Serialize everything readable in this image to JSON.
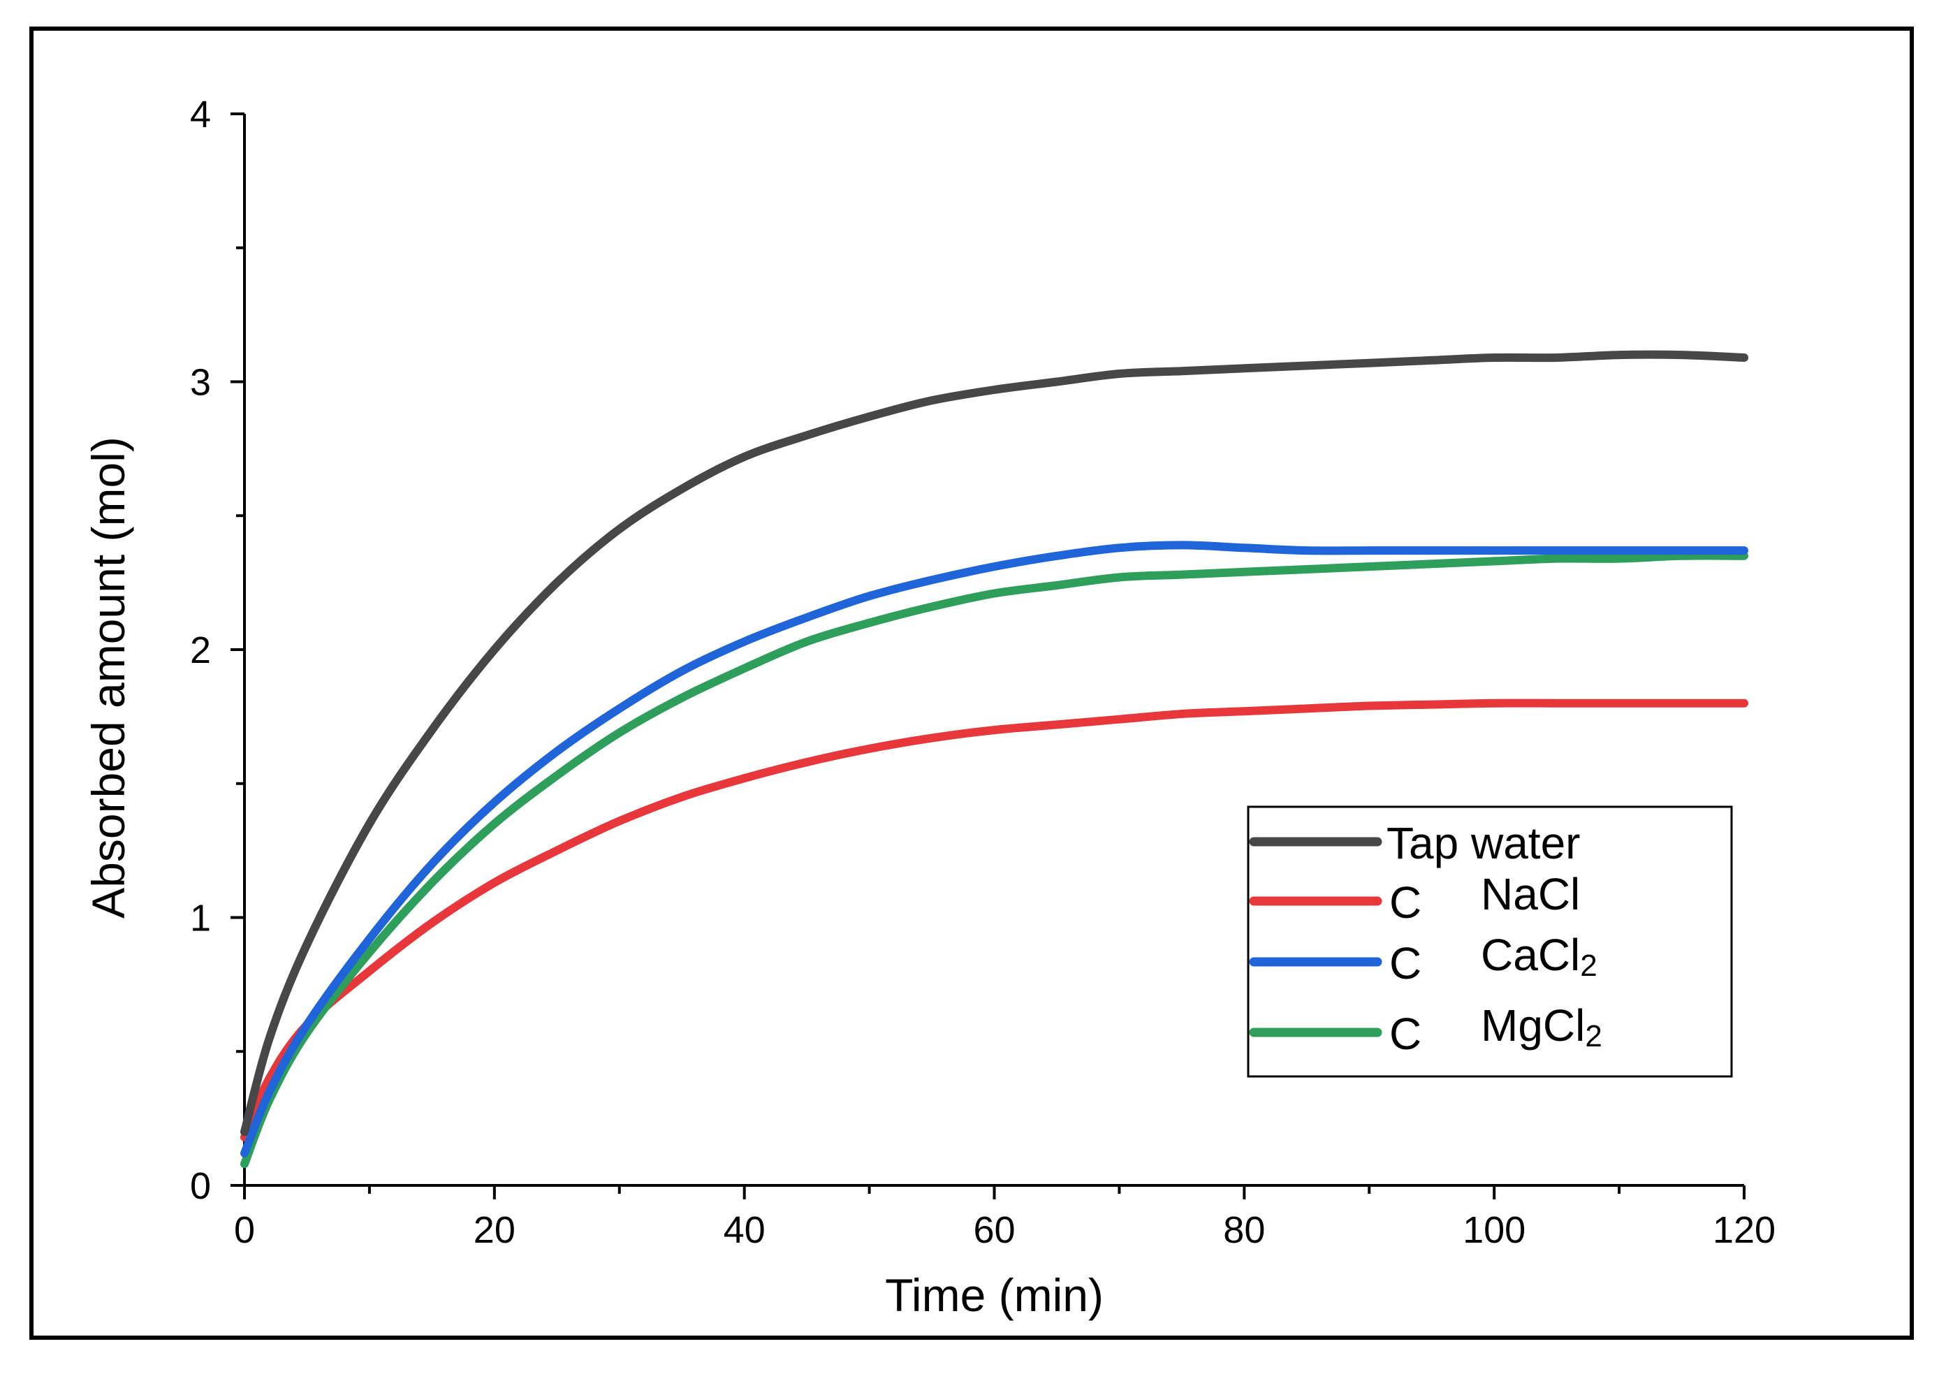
{
  "chart_data": {
    "type": "line",
    "title": "",
    "xlabel": "Time (min)",
    "ylabel": "Absorbed amount (mol)",
    "xlim": [
      0,
      120
    ],
    "ylim": [
      0,
      4
    ],
    "xticks": [
      0,
      20,
      40,
      60,
      80,
      100,
      120
    ],
    "yticks": [
      0,
      1,
      2,
      3,
      4
    ],
    "xtick_labels": [
      "0",
      "20",
      "40",
      "60",
      "80",
      "100",
      "120"
    ],
    "ytick_labels": [
      "0",
      "1",
      "2",
      "3",
      "4"
    ],
    "legend_position": "lower-right",
    "series": [
      {
        "name": "Tap water",
        "prefix": "",
        "base": "Tap water",
        "sub": "",
        "color": "#474747",
        "x": [
          0,
          2,
          5,
          10,
          15,
          20,
          25,
          30,
          35,
          40,
          45,
          50,
          55,
          60,
          65,
          70,
          75,
          80,
          85,
          90,
          95,
          100,
          105,
          110,
          115,
          120
        ],
        "y": [
          0.2,
          0.55,
          0.9,
          1.35,
          1.7,
          2.0,
          2.25,
          2.45,
          2.6,
          2.72,
          2.8,
          2.87,
          2.93,
          2.97,
          3.0,
          3.03,
          3.04,
          3.05,
          3.06,
          3.07,
          3.08,
          3.09,
          3.09,
          3.1,
          3.1,
          3.09
        ]
      },
      {
        "name": "C NaCl",
        "prefix": "C",
        "base": "NaCl",
        "sub": "",
        "color": "#e8373a",
        "x": [
          0,
          2,
          5,
          10,
          15,
          20,
          25,
          30,
          35,
          40,
          45,
          50,
          55,
          60,
          65,
          70,
          75,
          80,
          85,
          90,
          95,
          100,
          105,
          110,
          115,
          120
        ],
        "y": [
          0.18,
          0.4,
          0.6,
          0.8,
          0.98,
          1.13,
          1.25,
          1.36,
          1.45,
          1.52,
          1.58,
          1.63,
          1.67,
          1.7,
          1.72,
          1.74,
          1.76,
          1.77,
          1.78,
          1.79,
          1.795,
          1.8,
          1.8,
          1.8,
          1.8,
          1.8
        ]
      },
      {
        "name": "C CaCl2",
        "prefix": "C",
        "base": "CaCl",
        "sub": "2",
        "color": "#1f64d9",
        "x": [
          0,
          2,
          5,
          10,
          15,
          20,
          25,
          30,
          35,
          40,
          45,
          50,
          55,
          60,
          65,
          70,
          75,
          80,
          85,
          90,
          95,
          100,
          105,
          110,
          115,
          120
        ],
        "y": [
          0.12,
          0.35,
          0.6,
          0.92,
          1.2,
          1.43,
          1.62,
          1.78,
          1.92,
          2.03,
          2.12,
          2.2,
          2.26,
          2.31,
          2.35,
          2.38,
          2.39,
          2.38,
          2.37,
          2.37,
          2.37,
          2.37,
          2.37,
          2.37,
          2.37,
          2.37
        ]
      },
      {
        "name": "C MgCl2",
        "prefix": "C",
        "base": "MgCl",
        "sub": "2",
        "color": "#2e9e5b",
        "x": [
          0,
          2,
          5,
          10,
          15,
          20,
          25,
          30,
          35,
          40,
          45,
          50,
          55,
          60,
          65,
          70,
          75,
          80,
          85,
          90,
          95,
          100,
          105,
          110,
          115,
          120
        ],
        "y": [
          0.08,
          0.32,
          0.57,
          0.87,
          1.13,
          1.35,
          1.53,
          1.69,
          1.82,
          1.93,
          2.03,
          2.1,
          2.16,
          2.21,
          2.24,
          2.27,
          2.28,
          2.29,
          2.3,
          2.31,
          2.32,
          2.33,
          2.34,
          2.34,
          2.35,
          2.35
        ]
      }
    ]
  }
}
